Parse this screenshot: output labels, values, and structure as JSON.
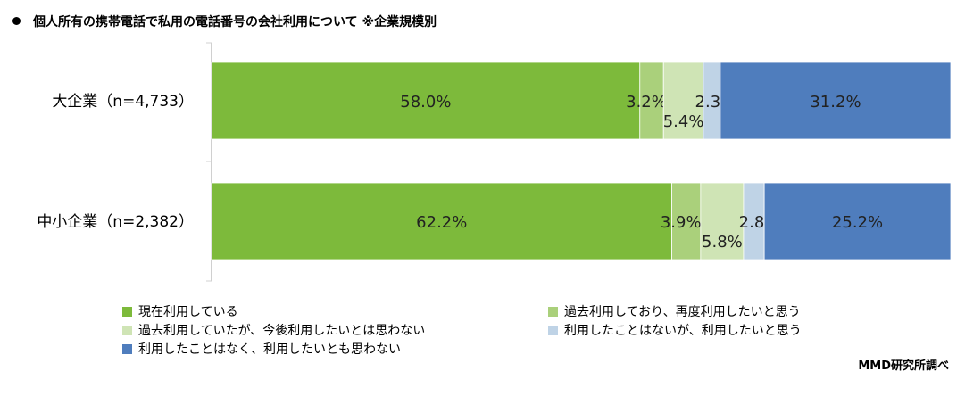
{
  "title": "個人所有の携帯電話で私用の電話番号の会社利用について ※企業規模別",
  "source": "MMD研究所調べ",
  "chart_data": {
    "type": "bar",
    "orientation": "horizontal",
    "stacked": "percent",
    "categories": [
      "大企業（n=4,733）",
      "中小企業（n=2,382）"
    ],
    "xlim": [
      0,
      100
    ],
    "series": [
      {
        "name": "現在利用している",
        "values": [
          58.0,
          62.2
        ],
        "labels": [
          "58.0%",
          "62.2%"
        ],
        "color": "#7dba3b"
      },
      {
        "name": "過去利用しており、再度利用したいと思う",
        "values": [
          3.2,
          3.9
        ],
        "labels": [
          "3.2%",
          "3.9%"
        ],
        "color": "#aad07b"
      },
      {
        "name": "過去利用していたが、今後利用したいとは思わない",
        "values": [
          5.4,
          5.8
        ],
        "labels": [
          "5.4%",
          "5.8%"
        ],
        "color": "#cfe4b5"
      },
      {
        "name": "利用したことはないが、利用したいと思う",
        "values": [
          2.3,
          2.8
        ],
        "labels": [
          "2.3%",
          "2.8%"
        ],
        "color": "#bfd3e6"
      },
      {
        "name": "利用したことはなく、利用したいとも思わない",
        "values": [
          31.2,
          25.2
        ],
        "labels": [
          "31.2%",
          "25.2%"
        ],
        "color": "#4f7dbd"
      }
    ],
    "legend_position": "bottom",
    "grid": false
  }
}
